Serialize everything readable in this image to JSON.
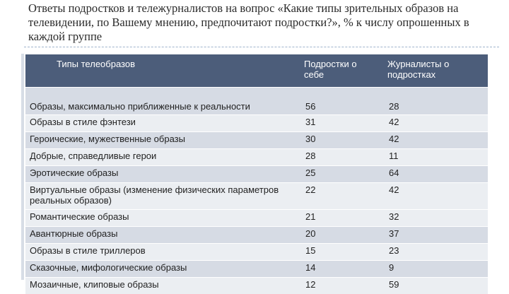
{
  "title": "Ответы подростков и тележурналистов на вопрос «Какие типы зрительных образов на телевидении, по Вашему мнению, предпочитают подростки?», % к числу опрошенных в каждой группе",
  "table": {
    "headers": [
      "Типы телеобразов",
      "Подростки о себе",
      "Журналисты о подростках"
    ],
    "rows": [
      [
        "Образы, максимально приближенные к реальности",
        "56",
        "28"
      ],
      [
        "Образы в стиле фэнтези",
        "31",
        "42"
      ],
      [
        "Героические, мужественные образы",
        "30",
        "42"
      ],
      [
        "Добрые, справедливые герои",
        "28",
        "11"
      ],
      [
        "Эротические образы",
        "25",
        "64"
      ],
      [
        "Виртуальные образы (изменение физических параметров реальных образов)",
        "22",
        "42"
      ],
      [
        "Романтические образы",
        "21",
        "32"
      ],
      [
        "Авантюрные образы",
        "20",
        "37"
      ],
      [
        "Образы в стиле триллеров",
        "15",
        "23"
      ],
      [
        "Сказочные, мифологические образы",
        "14",
        "9"
      ],
      [
        "Мозаичные, клиповые образы",
        "12",
        "59"
      ]
    ]
  },
  "colors": {
    "header_bg": "#4c5d7a",
    "row_dark": "#d6dbe4",
    "row_light": "#ebeef2"
  }
}
